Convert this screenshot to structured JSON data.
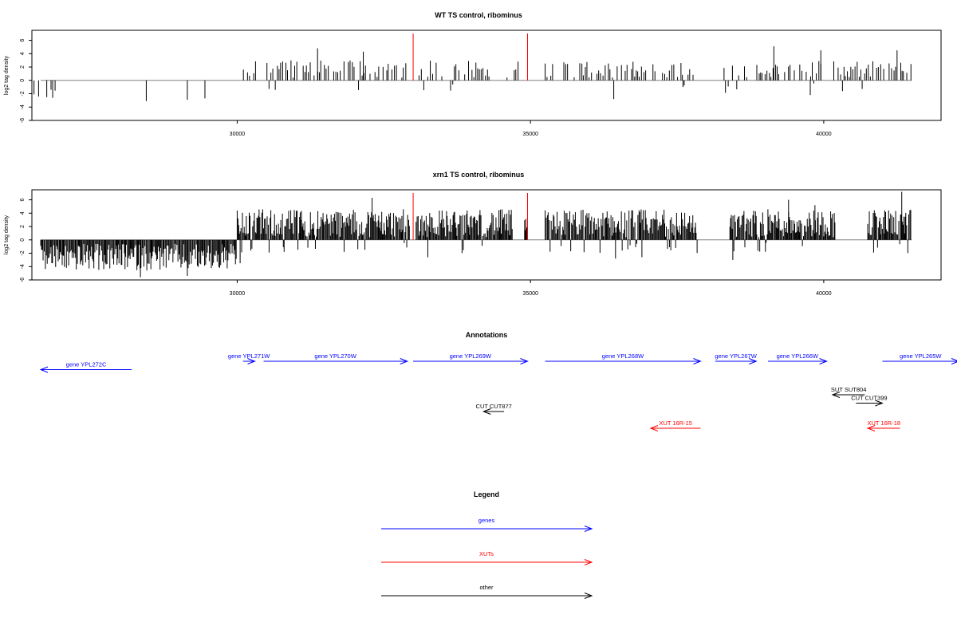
{
  "colors": {
    "genes": "#0000ff",
    "xuts": "#ff0000",
    "other": "#000000",
    "marker": "#ff0000",
    "baseline": "#808080"
  },
  "chart_data": [
    {
      "type": "bar",
      "title": "WT TS control, ribominus",
      "ylabel": "log2 tag density",
      "xlim": [
        26500,
        42000
      ],
      "ylim": [
        -6,
        7.5
      ],
      "xticks": [
        "30000",
        "35000",
        "40000"
      ],
      "yticks": [
        "6",
        "4",
        "2",
        "0",
        "-2",
        "-4",
        "-6"
      ],
      "markers": [
        33000,
        34950
      ],
      "coverage": [
        [
          26500,
          26900
        ],
        [
          30050,
          32900
        ],
        [
          33100,
          34300
        ],
        [
          34600,
          34950
        ],
        [
          35250,
          37800
        ],
        [
          38300,
          41500
        ]
      ],
      "highlights": [
        {
          "x": 28450,
          "value": -3.1
        },
        {
          "x": 29150,
          "value": -2.9
        },
        {
          "x": 29450,
          "value": -2.7
        },
        {
          "x": 31370,
          "value": 4.8
        },
        {
          "x": 32150,
          "value": 4.3
        },
        {
          "x": 36420,
          "value": -2.8
        },
        {
          "x": 37600,
          "value": -1.0
        },
        {
          "x": 39150,
          "value": 5.1
        },
        {
          "x": 39770,
          "value": -2.2
        },
        {
          "x": 39950,
          "value": 4.5
        },
        {
          "x": 41250,
          "value": 4.5
        }
      ]
    },
    {
      "type": "bar",
      "title": "xrn1 TS control, ribominus",
      "ylabel": "log2 tag density",
      "xlim": [
        26500,
        42000
      ],
      "ylim": [
        -6,
        7.5
      ],
      "xticks": [
        "30000",
        "35000",
        "40000"
      ],
      "yticks": [
        "6",
        "4",
        "2",
        "0",
        "-2",
        "-4",
        "-6"
      ],
      "markers": [
        33000,
        34950
      ],
      "coverage": [
        [
          26650,
          30000
        ],
        [
          30000,
          32950
        ],
        [
          33050,
          34700
        ],
        [
          34900,
          34950
        ],
        [
          35250,
          37850
        ],
        [
          38400,
          40200
        ],
        [
          40750,
          41500
        ]
      ],
      "highlights": [
        {
          "x": 28350,
          "value": -5.6
        },
        {
          "x": 29150,
          "value": -5.4
        },
        {
          "x": 30050,
          "value": -3.5
        },
        {
          "x": 32300,
          "value": 6.3
        },
        {
          "x": 33250,
          "value": -2.6
        },
        {
          "x": 36450,
          "value": -2.8
        },
        {
          "x": 36900,
          "value": -2.6
        },
        {
          "x": 38450,
          "value": -3.0
        },
        {
          "x": 39400,
          "value": 6.0
        },
        {
          "x": 39850,
          "value": 5.2
        },
        {
          "x": 40850,
          "value": -1.9
        },
        {
          "x": 41330,
          "value": 7.2
        }
      ]
    }
  ],
  "annotations": {
    "title": "Annotations",
    "features": [
      {
        "label": "gene YPL272C",
        "kind": "genes",
        "start": 28200,
        "end": 26650,
        "row": 1
      },
      {
        "label": "gene YPL271W",
        "kind": "genes",
        "start": 30100,
        "end": 30300,
        "row": 0
      },
      {
        "label": "gene YPL270W",
        "kind": "genes",
        "start": 30450,
        "end": 32900,
        "row": 0
      },
      {
        "label": "gene YPL269W",
        "kind": "genes",
        "start": 33000,
        "end": 34950,
        "row": 0
      },
      {
        "label": "gene YPL268W",
        "kind": "genes",
        "start": 35250,
        "end": 37900,
        "row": 0
      },
      {
        "label": "gene YPL267W",
        "kind": "genes",
        "start": 38150,
        "end": 38850,
        "row": 0
      },
      {
        "label": "gene YPL266W",
        "kind": "genes",
        "start": 39050,
        "end": 40050,
        "row": 0
      },
      {
        "label": "gene YPL265W",
        "kind": "genes",
        "start": 41000,
        "end": 42300,
        "row": 0
      },
      {
        "label": "SUT SUT804",
        "kind": "other",
        "start": 40700,
        "end": 40150,
        "row": 4
      },
      {
        "label": "CUT CUT399",
        "kind": "other",
        "start": 40550,
        "end": 41000,
        "row": 5
      },
      {
        "label": "CUT CUT877",
        "kind": "other",
        "start": 34550,
        "end": 34200,
        "row": 6
      },
      {
        "label": "XUT 16R-15",
        "kind": "xuts",
        "start": 37900,
        "end": 37050,
        "row": 8
      },
      {
        "label": "XUT 16R-18",
        "kind": "xuts",
        "start": 41300,
        "end": 40750,
        "row": 8
      }
    ]
  },
  "legend": {
    "title": "Legend",
    "items": [
      {
        "label": "genes",
        "kind": "genes"
      },
      {
        "label": "XUTs",
        "kind": "xuts"
      },
      {
        "label": "other",
        "kind": "other"
      }
    ]
  }
}
